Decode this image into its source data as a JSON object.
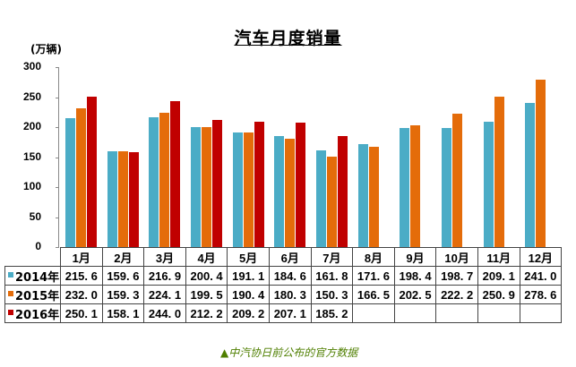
{
  "chart_data": {
    "type": "bar",
    "title": "汽车月度销量",
    "ylabel": "(万辆)",
    "xlabel": "",
    "ylim": [
      0,
      300
    ],
    "yticks": [
      0,
      50,
      100,
      150,
      200,
      250,
      300
    ],
    "grid": false,
    "legend_position": "data-table-left",
    "categories": [
      "1月",
      "2月",
      "3月",
      "4月",
      "5月",
      "6月",
      "7月",
      "8月",
      "9月",
      "10月",
      "11月",
      "12月"
    ],
    "series": [
      {
        "name": "2014年",
        "color": "#4bacc6",
        "values": [
          215.6,
          159.6,
          216.9,
          200.4,
          191.1,
          184.6,
          161.8,
          171.6,
          198.4,
          198.7,
          209.1,
          241.0
        ]
      },
      {
        "name": "2015年",
        "color": "#e46c0a",
        "values": [
          232.0,
          159.3,
          224.1,
          199.5,
          190.4,
          180.3,
          150.3,
          166.5,
          202.5,
          222.2,
          250.9,
          278.6
        ]
      },
      {
        "name": "2016年",
        "color": "#c00000",
        "values": [
          250.1,
          158.1,
          244.0,
          212.2,
          209.2,
          207.1,
          185.2,
          null,
          null,
          null,
          null,
          null
        ]
      }
    ],
    "table_display": [
      [
        "215. 6",
        "159. 6",
        "216. 9",
        "200. 4",
        "191. 1",
        "184. 6",
        "161. 8",
        "171. 6",
        "198. 4",
        "198. 7",
        "209. 1",
        "241. 0"
      ],
      [
        "232. 0",
        "159. 3",
        "224. 1",
        "199. 5",
        "190. 4",
        "180. 3",
        "150. 3",
        "166. 5",
        "202. 5",
        "222. 2",
        "250. 9",
        "278. 6"
      ],
      [
        "250. 1",
        "158. 1",
        "244. 0",
        "212. 2",
        "209. 2",
        "207. 1",
        "185. 2",
        "",
        "",
        "",
        "",
        ""
      ]
    ],
    "annotation": "▲中汽协日前公布的官方数据"
  }
}
